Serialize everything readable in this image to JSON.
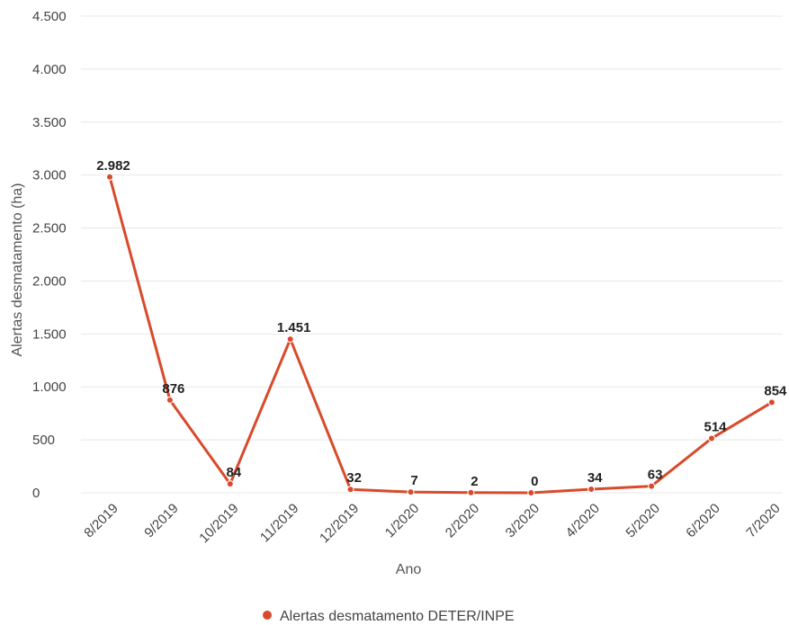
{
  "chart_data": {
    "type": "line",
    "title": "",
    "xlabel": "Ano",
    "ylabel": "Alertas desmatamento (ha)",
    "ylim": [
      0,
      4500
    ],
    "y_ticks": [
      0,
      500,
      1000,
      1500,
      2000,
      2500,
      3000,
      3500,
      4000,
      4500
    ],
    "y_tick_labels": [
      "0",
      "500",
      "1.000",
      "1.500",
      "2.000",
      "2.500",
      "3.000",
      "3.500",
      "4.000",
      "4.500"
    ],
    "categories": [
      "8/2019",
      "9/2019",
      "10/2019",
      "11/2019",
      "12/2019",
      "1/2020",
      "2/2020",
      "3/2020",
      "4/2020",
      "5/2020",
      "6/2020",
      "7/2020"
    ],
    "series": [
      {
        "name": "Alertas desmatamento DETER/INPE",
        "color": "#d94a2b",
        "values": [
          2982,
          876,
          84,
          1451,
          32,
          7,
          2,
          0,
          34,
          63,
          514,
          854
        ],
        "data_labels": [
          "2.982",
          "876",
          "84",
          "1.451",
          "32",
          "7",
          "2",
          "0",
          "34",
          "63",
          "514",
          "854"
        ]
      }
    ],
    "grid": true,
    "legend_position": "bottom-center"
  }
}
